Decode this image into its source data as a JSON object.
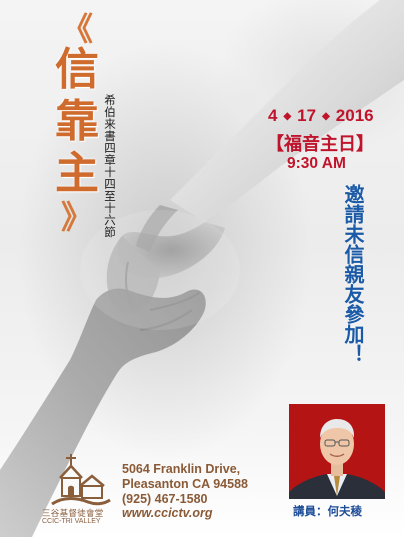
{
  "title": {
    "chars": [
      "信",
      "靠",
      "主"
    ],
    "bracket_glyph": "《"
  },
  "scripture": "希伯来書四章十四至十六節",
  "event": {
    "date_parts": [
      "4",
      "17",
      "2016"
    ],
    "date_separator": "◆",
    "service_bracket_left": "【",
    "service_name": "福音主日",
    "service_bracket_right": "】",
    "time": "9:30 AM"
  },
  "invitation": "邀請未信親友參加！",
  "speaker": "講員：何夫稜",
  "church": {
    "name_zh": "三谷基督徒會堂",
    "name_en": "CCIC-TRI VALLEY"
  },
  "contact": {
    "address_line1": "5064 Franklin Drive,",
    "address_line2": "Pleasanton CA 94588",
    "phone": "(925) 467-1580",
    "website": "www.ccictv.org"
  },
  "colors": {
    "accent_orange": "#d06b2e",
    "accent_red": "#c0142c",
    "accent_blue": "#1b5aa6",
    "brand_brown": "#8a5a36"
  }
}
